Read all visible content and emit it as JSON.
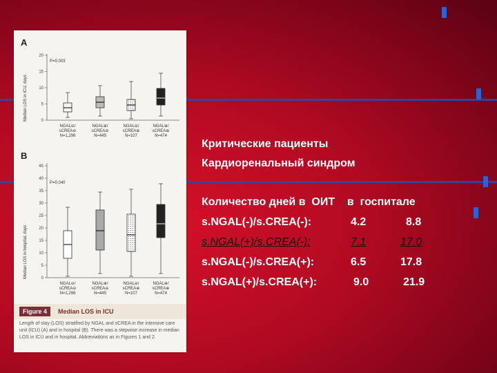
{
  "figure": {
    "panelA": {
      "letter": "A",
      "ylabel": "Median LOS in ICU, days",
      "pvalue": "P=0.003",
      "yticks": [
        "0",
        "5",
        "10",
        "15",
        "20"
      ],
      "groups": [
        {
          "l1": "NGAL⊖/",
          "l2": "sCREA⊖",
          "l3": "N=1,296"
        },
        {
          "l1": "NGAL⊕/",
          "l2": "sCREA⊖",
          "l3": "N=445"
        },
        {
          "l1": "NGAL⊖/",
          "l2": "sCREA⊕",
          "l3": "N=107"
        },
        {
          "l1": "NGAL⊕/",
          "l2": "sCREA⊕",
          "l3": "N=474"
        }
      ]
    },
    "panelB": {
      "letter": "B",
      "ylabel": "Median LOS in hospital, days",
      "pvalue": "P=0.040",
      "yticks": [
        "0",
        "5",
        "10",
        "15",
        "20",
        "25",
        "30",
        "35",
        "40",
        "45"
      ],
      "groups": [
        {
          "l1": "NGAL⊖/",
          "l2": "sCREA⊖",
          "l3": "N=1,296"
        },
        {
          "l1": "NGAL⊕/",
          "l2": "sCREA⊖",
          "l3": "N=445"
        },
        {
          "l1": "NGAL⊖/",
          "l2": "sCREA⊕",
          "l3": "N=107"
        },
        {
          "l1": "NGAL⊕/",
          "l2": "sCREA⊕",
          "l3": "N=474"
        }
      ]
    },
    "caption_number": "Figure 4",
    "caption_title": "Median LOS in ICU",
    "caption_text": "Length of stay (LOS) stratified by NGAL and sCREA in the intensive care unit (ICU) (A) and in hospital (B). There was a stepwise increase in median LOS in ICU and in hospital. Abbreviations as in Figures 1 and 2."
  },
  "text": {
    "line1": "Критические пациенты",
    "line2": "Кардиоренальный синдром",
    "header": "Количество дней в  ОИТ    в  госпитале",
    "rows": [
      {
        "label": "s.NGAL(-)/s.CREA(-):",
        "icu": "4.2",
        "hosp": "8.8"
      },
      {
        "label": "s.NGAL(+)/s.CREA(-):",
        "icu": "7.1",
        "hosp": "17.0"
      },
      {
        "label": "s.NGAL(-)/s.CREA(+):",
        "icu": "6.5",
        "hosp": "17.8"
      },
      {
        "label": "s.NGAL(+)/s.CREA(+):",
        "icu": "9.0",
        "hosp": "21.9"
      }
    ]
  },
  "colors": {
    "accent_blue": "#2a63d4",
    "background": "#c00c26",
    "highlight_text": "#101010"
  }
}
